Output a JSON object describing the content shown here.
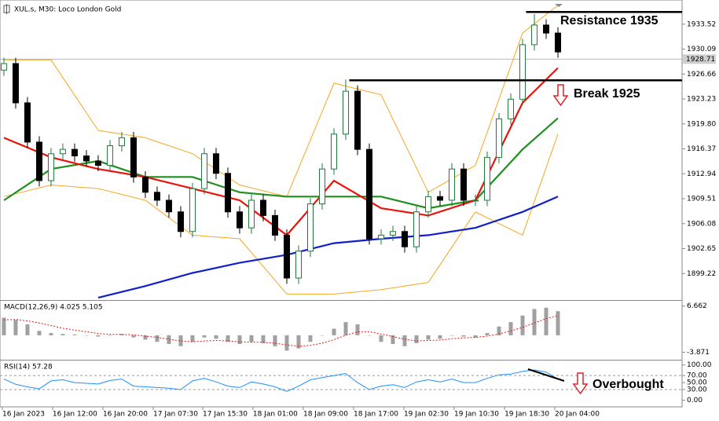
{
  "chart_data": [
    {
      "type": "candlestick",
      "title": "XUL.s, M30: Loco London Gold",
      "open": [
        1927.2,
        1928.1,
        1922.7,
        1917.3,
        1912.0,
        1915.7,
        1916.3,
        1915.4,
        1914.7,
        1914.1,
        1916.8,
        1917.9,
        1912.5,
        1910.4,
        1909.3,
        1907.7,
        1905.0,
        1910.9,
        1915.7,
        1913.0,
        1907.7,
        1905.5,
        1909.3,
        1907.2,
        1904.5,
        1898.6,
        1902.3,
        1908.8,
        1913.6,
        1918.4,
        1924.3,
        1916.3,
        1904.0,
        1904.5,
        1905.0,
        1902.9,
        1907.7,
        1909.8,
        1909.3,
        1913.6,
        1909.3,
        1909.3,
        1915.2,
        1920.5,
        1923.2,
        1930.7,
        1933.4,
        1932.3
      ],
      "high": [
        1928.9,
        1928.9,
        1923.5,
        1918.1,
        1916.5,
        1917.1,
        1917.1,
        1916.2,
        1915.5,
        1917.6,
        1918.7,
        1918.7,
        1913.3,
        1911.2,
        1910.1,
        1908.5,
        1911.7,
        1916.5,
        1916.5,
        1913.8,
        1908.5,
        1910.1,
        1910.1,
        1908.0,
        1905.3,
        1903.1,
        1909.6,
        1914.4,
        1919.2,
        1925.9,
        1925.1,
        1917.1,
        1905.3,
        1905.8,
        1905.8,
        1908.5,
        1910.6,
        1910.6,
        1914.4,
        1914.4,
        1910.1,
        1916.0,
        1921.3,
        1924.0,
        1931.5,
        1934.9,
        1934.2,
        1933.1
      ],
      "low": [
        1926.4,
        1921.9,
        1916.5,
        1911.2,
        1911.2,
        1914.9,
        1914.6,
        1913.9,
        1913.3,
        1913.3,
        1916.0,
        1911.7,
        1909.6,
        1908.5,
        1906.9,
        1904.2,
        1904.2,
        1910.1,
        1912.2,
        1906.9,
        1904.7,
        1904.7,
        1906.4,
        1903.7,
        1897.8,
        1897.8,
        1901.5,
        1908.0,
        1912.8,
        1917.6,
        1915.5,
        1903.2,
        1903.2,
        1903.7,
        1902.1,
        1902.1,
        1906.9,
        1908.5,
        1908.5,
        1908.5,
        1908.5,
        1908.5,
        1914.4,
        1919.7,
        1922.4,
        1929.9,
        1931.5,
        1928.9
      ],
      "close": [
        1928.1,
        1922.7,
        1917.3,
        1912.0,
        1915.7,
        1916.3,
        1915.4,
        1914.7,
        1914.1,
        1916.8,
        1917.9,
        1912.5,
        1910.4,
        1909.3,
        1907.7,
        1905.0,
        1910.9,
        1915.7,
        1913.0,
        1907.7,
        1905.5,
        1909.3,
        1907.2,
        1904.5,
        1898.6,
        1902.3,
        1908.8,
        1913.6,
        1918.4,
        1924.3,
        1916.3,
        1904.0,
        1904.5,
        1905.0,
        1902.9,
        1907.7,
        1909.8,
        1909.3,
        1913.6,
        1909.3,
        1909.3,
        1915.2,
        1920.5,
        1923.2,
        1930.7,
        1933.4,
        1932.3,
        1929.7
      ],
      "up_color": "#1f7a3a",
      "down_color": "#000000",
      "xlim": [
        -0.33,
        57.53
      ],
      "xticks": [
        {
          "value": -0.13,
          "label": "16 Jan 2023"
        },
        {
          "value": 4.13,
          "label": "16 Jan 12:00"
        },
        {
          "value": 8.4,
          "label": "16 Jan 20:00"
        },
        {
          "value": 12.67,
          "label": "17 Jan 07:30"
        },
        {
          "value": 16.87,
          "label": "17 Jan 15:30"
        },
        {
          "value": 21.13,
          "label": "18 Jan 01:00"
        },
        {
          "value": 25.4,
          "label": "18 Jan 09:00"
        },
        {
          "value": 29.67,
          "label": "18 Jan 17:00"
        },
        {
          "value": 33.93,
          "label": "19 Jan 02:30"
        },
        {
          "value": 38.2,
          "label": "19 Jan 10:30"
        },
        {
          "value": 42.47,
          "label": "19 Jan 18:30"
        },
        {
          "value": 46.73,
          "label": "20 Jan 04:00"
        }
      ],
      "ylim": [
        1895.79,
        1936.63
      ],
      "yticks": [
        1933.52,
        1930.09,
        1926.66,
        1923.23,
        {
          "value": 1919.8,
          "label": "1919.80"
        },
        1916.37,
        1912.94,
        1909.51,
        1906.08,
        1902.65,
        1899.22
      ],
      "last_price": 1928.71,
      "overlay_x": [
        0,
        4,
        8,
        12,
        16,
        20,
        24,
        28,
        32,
        36,
        40,
        44,
        47
      ],
      "overlays": [
        {
          "color": "#f5a623",
          "values": [
            1928.6,
            1928.6,
            1918.9,
            1917.9,
            1915.7,
            1911.4,
            1909.8,
            1925.4,
            1923.8,
            1910.4,
            1914.1,
            1932.3,
            1936.1
          ]
        },
        {
          "color": "#f5a623",
          "values": [
            1909.8,
            1911.4,
            1910.9,
            1909.3,
            1904.5,
            1904.0,
            1896.4,
            1896.4,
            1897.0,
            1898.0,
            1907.7,
            1904.5,
            1918.4
          ]
        },
        {
          "color": "#1f8f1f",
          "values": [
            1909.3,
            1913.6,
            1914.7,
            1912.5,
            1912.5,
            1910.4,
            1909.8,
            1909.8,
            1909.8,
            1908.2,
            1909.3,
            1916.3,
            1920.6
          ]
        },
        {
          "color": "#e8140c",
          "values": [
            1917.9,
            1915.2,
            1913.6,
            1912.5,
            1910.9,
            1909.3,
            1904.5,
            1912.0,
            1908.2,
            1907.2,
            1909.3,
            1922.7,
            1927.5
          ]
        },
        {
          "color": "#1020c8",
          "values": [
            null,
            null,
            1895.9,
            1897.5,
            1899.3,
            1900.7,
            1901.8,
            1903.4,
            1904.0,
            1904.5,
            1905.5,
            1907.7,
            1909.8
          ]
        }
      ],
      "levels": [
        {
          "value": 1935.2,
          "from": 44.3,
          "label": "Resistance 1935"
        },
        {
          "value": 1925.8,
          "from": 29.3,
          "label": "Break 1925"
        }
      ]
    },
    {
      "type": "macd",
      "title": "MACD(12,26,9) 4.025 5.105",
      "histogram": [
        4,
        3.5,
        2.5,
        1,
        0.5,
        0.3,
        0.2,
        0,
        -0.3,
        0,
        0.3,
        -0.5,
        -1,
        -1.5,
        -2,
        -2.5,
        -1.5,
        -0.5,
        -0.8,
        -1.5,
        -2,
        -1.5,
        -1.8,
        -2.5,
        -3.5,
        -3,
        -1.5,
        0,
        1.5,
        3,
        2.5,
        0,
        -1.5,
        -2,
        -2.5,
        -1.8,
        -1,
        -0.8,
        0,
        -0.3,
        -0.5,
        0.5,
        2,
        3,
        4.5,
        6,
        6.3,
        5.5
      ],
      "signal": [
        3.5,
        3.6,
        3.3,
        2.8,
        2.2,
        1.6,
        1.2,
        0.8,
        0.4,
        0.2,
        0.2,
        0.1,
        -0.2,
        -0.5,
        -0.9,
        -1.3,
        -1.5,
        -1.3,
        -1.2,
        -1.3,
        -1.5,
        -1.6,
        -1.6,
        -1.8,
        -2.2,
        -2.5,
        -2.3,
        -1.8,
        -1.0,
        0,
        0.8,
        0.8,
        0.3,
        -0.3,
        -0.9,
        -1.3,
        -1.2,
        -1.1,
        -0.8,
        -0.6,
        -0.5,
        -0.2,
        0.3,
        1,
        1.8,
        2.8,
        3.8,
        4.5
      ],
      "histogram_color": "#a0a0a0",
      "signal_color": "#e8140c",
      "ylim": [
        -5.23,
        7.51
      ],
      "yticks": [
        6.662,
        -3.871
      ]
    },
    {
      "type": "line",
      "title": "RSI(14) 57.28",
      "values": [
        60,
        45,
        38,
        32,
        55,
        58,
        50,
        48,
        46,
        56,
        60,
        40,
        38,
        36,
        34,
        30,
        55,
        62,
        52,
        40,
        36,
        52,
        46,
        38,
        25,
        40,
        58,
        64,
        70,
        76,
        50,
        30,
        40,
        44,
        36,
        52,
        58,
        52,
        60,
        50,
        50,
        62,
        72,
        74,
        82,
        86,
        80,
        60
      ],
      "color": "#1e90ff",
      "ylim": [
        -14.6,
        108.3
      ],
      "yticks": [
        {
          "value": 100,
          "label": "100.00"
        },
        {
          "value": 70,
          "label": "70.00"
        },
        {
          "value": 50,
          "label": "50.00"
        },
        {
          "value": 30,
          "label": "30.00"
        },
        {
          "value": 0,
          "label": "0.00"
        }
      ],
      "levels": [
        70,
        30
      ],
      "annotation": "Overbought"
    }
  ]
}
